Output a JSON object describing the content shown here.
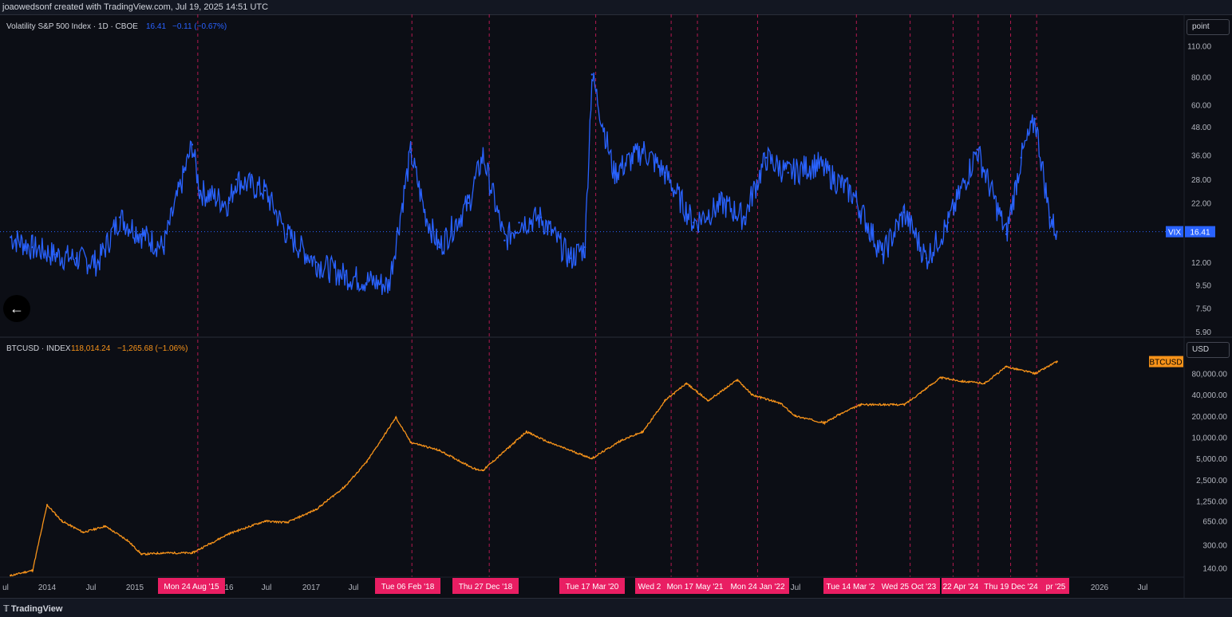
{
  "header": {
    "credit": "joaowedsonf created with TradingView.com, Jul 19, 2025 14:51 UTC"
  },
  "footer": {
    "brand": "TradingView"
  },
  "colors": {
    "vix": "#2962ff",
    "btc": "#f7931a",
    "marker": "#e91e63",
    "bg": "#0c0e15"
  },
  "controls": {
    "vix_scale": "point",
    "btc_scale": "USD"
  },
  "chart_data": [
    {
      "type": "line",
      "pane": "top",
      "legend": {
        "name": "Volatility S&P 500 Index · 1D · CBOE",
        "value": "16.41",
        "change": "−0.11 (−0.67%)"
      },
      "y_scale": "log",
      "ylim": [
        5.9,
        115
      ],
      "y_ticks": [
        "110.00",
        "80.00",
        "60.00",
        "48.00",
        "36.00",
        "28.00",
        "22.00",
        "16.41",
        "12.00",
        "9.50",
        "7.50",
        "5.90"
      ],
      "last_label": {
        "symbol": "VIX",
        "value": "16.41"
      },
      "x": [
        "2013-07",
        "2013-10",
        "2014-01",
        "2014-04",
        "2014-07",
        "2014-10",
        "2015-01",
        "2015-04",
        "2015-08",
        "2015-09",
        "2016-01",
        "2016-02",
        "2016-06",
        "2016-09",
        "2017-01",
        "2017-05",
        "2017-11",
        "2018-02",
        "2018-04",
        "2018-06",
        "2018-10",
        "2018-12",
        "2019-03",
        "2019-05",
        "2019-08",
        "2019-12",
        "2020-02",
        "2020-03",
        "2020-06",
        "2020-10",
        "2021-01",
        "2021-05",
        "2021-09",
        "2021-12",
        "2022-01",
        "2022-03",
        "2022-06",
        "2022-10",
        "2023-03",
        "2023-07",
        "2023-10",
        "2024-01",
        "2024-04",
        "2024-08",
        "2024-12",
        "2025-02",
        "2025-04",
        "2025-06",
        "2025-07"
      ],
      "values": [
        15.5,
        14,
        13,
        12.5,
        12,
        19,
        16,
        14,
        40,
        25,
        22,
        28,
        25,
        16,
        12,
        10.5,
        9.5,
        37,
        20,
        14,
        22,
        36,
        15,
        18,
        19,
        12.5,
        14,
        82,
        30,
        38,
        30,
        18,
        22,
        19,
        24,
        35,
        30,
        33,
        24,
        13,
        20,
        12.5,
        18,
        38,
        16,
        35,
        52,
        19,
        16.41
      ]
    },
    {
      "type": "line",
      "pane": "bottom",
      "legend": {
        "name": "BTCUSD · INDEX",
        "value": "118,014.24",
        "change": "−1,265.68 (−1.06%)"
      },
      "y_scale": "log",
      "ylim": [
        110,
        140000
      ],
      "y_ticks": [
        "80,000.00",
        "40,000.00",
        "20,000.00",
        "10,000.00",
        "5,000.00",
        "2,500.00",
        "1,250.00",
        "650.00",
        "300.00",
        "140.00"
      ],
      "last_label": {
        "symbol": "BTCUSD"
      },
      "x": [
        "2013-07",
        "2013-10",
        "2013-12",
        "2014-02",
        "2014-05",
        "2014-08",
        "2014-11",
        "2015-01",
        "2015-04",
        "2015-08",
        "2016-01",
        "2016-06",
        "2016-09",
        "2017-01",
        "2017-05",
        "2017-08",
        "2017-12",
        "2018-02",
        "2018-06",
        "2018-11",
        "2018-12",
        "2019-06",
        "2019-09",
        "2020-03",
        "2020-07",
        "2020-10",
        "2021-01",
        "2021-04",
        "2021-07",
        "2021-11",
        "2022-01",
        "2022-05",
        "2022-07",
        "2022-11",
        "2023-01",
        "2023-04",
        "2023-10",
        "2024-03",
        "2024-06",
        "2024-09",
        "2024-12",
        "2025-04",
        "2025-07"
      ],
      "values": [
        110,
        130,
        1100,
        650,
        450,
        550,
        350,
        220,
        230,
        230,
        430,
        650,
        620,
        950,
        2000,
        4500,
        19000,
        8500,
        6500,
        3500,
        3400,
        12000,
        8500,
        5000,
        9000,
        12000,
        33000,
        58000,
        33000,
        65000,
        40000,
        30000,
        20000,
        16000,
        21000,
        29000,
        29000,
        70000,
        62000,
        58000,
        100000,
        80000,
        118014
      ]
    }
  ],
  "time_axis": [
    "ul",
    "2014",
    "Jul",
    "2015",
    "16",
    "Jul",
    "2017",
    "Jul",
    "Jul",
    "2026",
    "Jul"
  ],
  "event_markers": [
    {
      "date": "2015-08-24",
      "label": "Mon 24 Aug '15"
    },
    {
      "date": "2018-02-06",
      "label": "Tue 06 Feb '18"
    },
    {
      "date": "2018-12-27",
      "label": "Thu 27 Dec '18"
    },
    {
      "date": "2020-03-17",
      "label": "Tue 17 Mar '20"
    },
    {
      "date": "2021-01-27",
      "label": "Wed 2"
    },
    {
      "date": "2021-05-17",
      "label": "Mon 17 May '21"
    },
    {
      "date": "2022-01-24",
      "label": "Mon 24 Jan '22"
    },
    {
      "date": "2023-03-14",
      "label": "Tue 14 Mar '2"
    },
    {
      "date": "2023-10-25",
      "label": "Wed 25 Oct '23"
    },
    {
      "date": "2024-04-22",
      "label": "22 Apr '24"
    },
    {
      "date": "2024-08-05",
      "label": ""
    },
    {
      "date": "2024-12-19",
      "label": "Thu 19 Dec '24"
    },
    {
      "date": "2025-04-07",
      "label": "pr '25"
    }
  ]
}
